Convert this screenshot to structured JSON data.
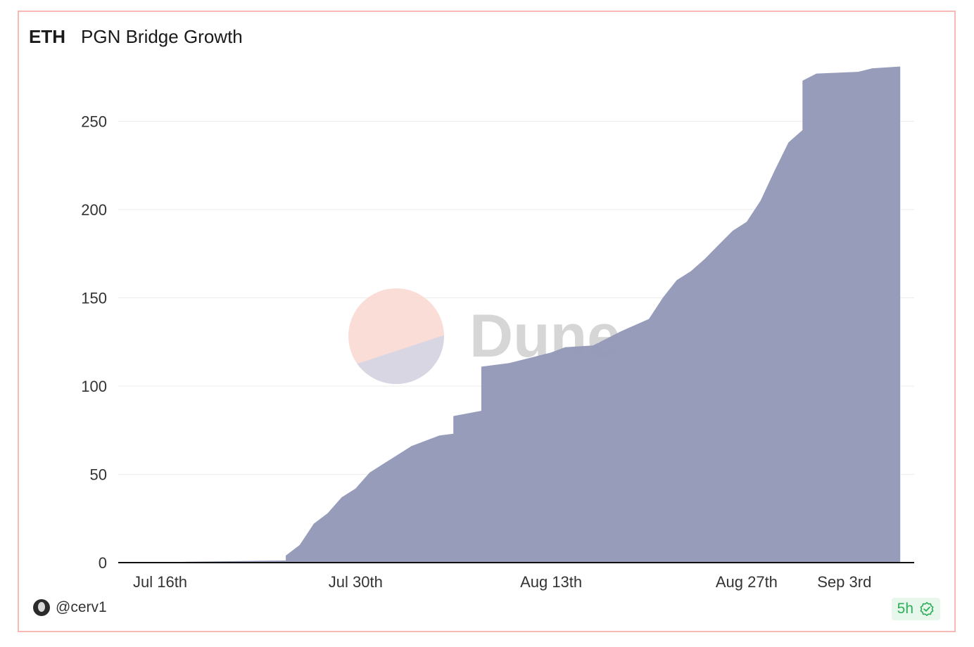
{
  "header": {
    "prefix": "ETH",
    "title": "PGN Bridge Growth"
  },
  "footer": {
    "username": "@cerv1",
    "freshness": "5h"
  },
  "watermark": {
    "text": "Dune"
  },
  "colors": {
    "area": "#9399b8",
    "grid": "#ececec",
    "axis": "#111111",
    "border": "#f6b9b5",
    "watermark_circle_top": "#fbd9d3",
    "watermark_circle_bottom": "#d4d5e4",
    "badge_bg": "#e7f7ec",
    "badge_fg": "#2fae5a"
  },
  "chart_data": {
    "type": "area",
    "title": "PGN Bridge Growth",
    "xlabel": "",
    "ylabel": "",
    "ylim": [
      0,
      290
    ],
    "yticks": [
      0,
      50,
      100,
      150,
      200,
      250
    ],
    "xlim": [
      "2023-07-13",
      "2023-09-08"
    ],
    "xticks": [
      {
        "date": "2023-07-16",
        "label": "Jul 16th"
      },
      {
        "date": "2023-07-30",
        "label": "Jul 30th"
      },
      {
        "date": "2023-08-13",
        "label": "Aug 13th"
      },
      {
        "date": "2023-08-27",
        "label": "Aug 27th"
      },
      {
        "date": "2023-09-03",
        "label": "Sep 3rd"
      }
    ],
    "grid": true,
    "legend": "none",
    "series": [
      {
        "name": "",
        "points": [
          [
            "2023-07-13",
            0
          ],
          [
            "2023-07-16",
            0
          ],
          [
            "2023-07-18",
            0.5
          ],
          [
            "2023-07-25",
            1.2
          ],
          [
            "2023-07-25",
            4
          ],
          [
            "2023-07-26",
            10
          ],
          [
            "2023-07-27",
            22
          ],
          [
            "2023-07-28",
            28
          ],
          [
            "2023-07-29",
            37
          ],
          [
            "2023-07-30",
            42
          ],
          [
            "2023-07-31",
            51
          ],
          [
            "2023-08-01",
            56
          ],
          [
            "2023-08-02",
            61
          ],
          [
            "2023-08-03",
            66
          ],
          [
            "2023-08-04",
            69
          ],
          [
            "2023-08-05",
            72
          ],
          [
            "2023-08-06",
            73
          ],
          [
            "2023-08-06",
            83
          ],
          [
            "2023-08-08",
            86
          ],
          [
            "2023-08-08",
            111
          ],
          [
            "2023-08-10",
            113
          ],
          [
            "2023-08-12",
            117
          ],
          [
            "2023-08-13",
            119
          ],
          [
            "2023-08-14",
            122
          ],
          [
            "2023-08-16",
            123
          ],
          [
            "2023-08-17",
            127
          ],
          [
            "2023-08-18",
            131
          ],
          [
            "2023-08-20",
            138
          ],
          [
            "2023-08-21",
            150
          ],
          [
            "2023-08-22",
            160
          ],
          [
            "2023-08-23",
            165
          ],
          [
            "2023-08-24",
            172
          ],
          [
            "2023-08-25",
            180
          ],
          [
            "2023-08-26",
            188
          ],
          [
            "2023-08-27",
            193
          ],
          [
            "2023-08-28",
            205
          ],
          [
            "2023-08-29",
            222
          ],
          [
            "2023-08-30",
            238
          ],
          [
            "2023-08-31",
            245
          ],
          [
            "2023-08-31",
            273
          ],
          [
            "2023-09-01",
            277
          ],
          [
            "2023-09-04",
            278
          ],
          [
            "2023-09-05",
            280
          ],
          [
            "2023-09-07",
            281
          ]
        ]
      }
    ]
  }
}
